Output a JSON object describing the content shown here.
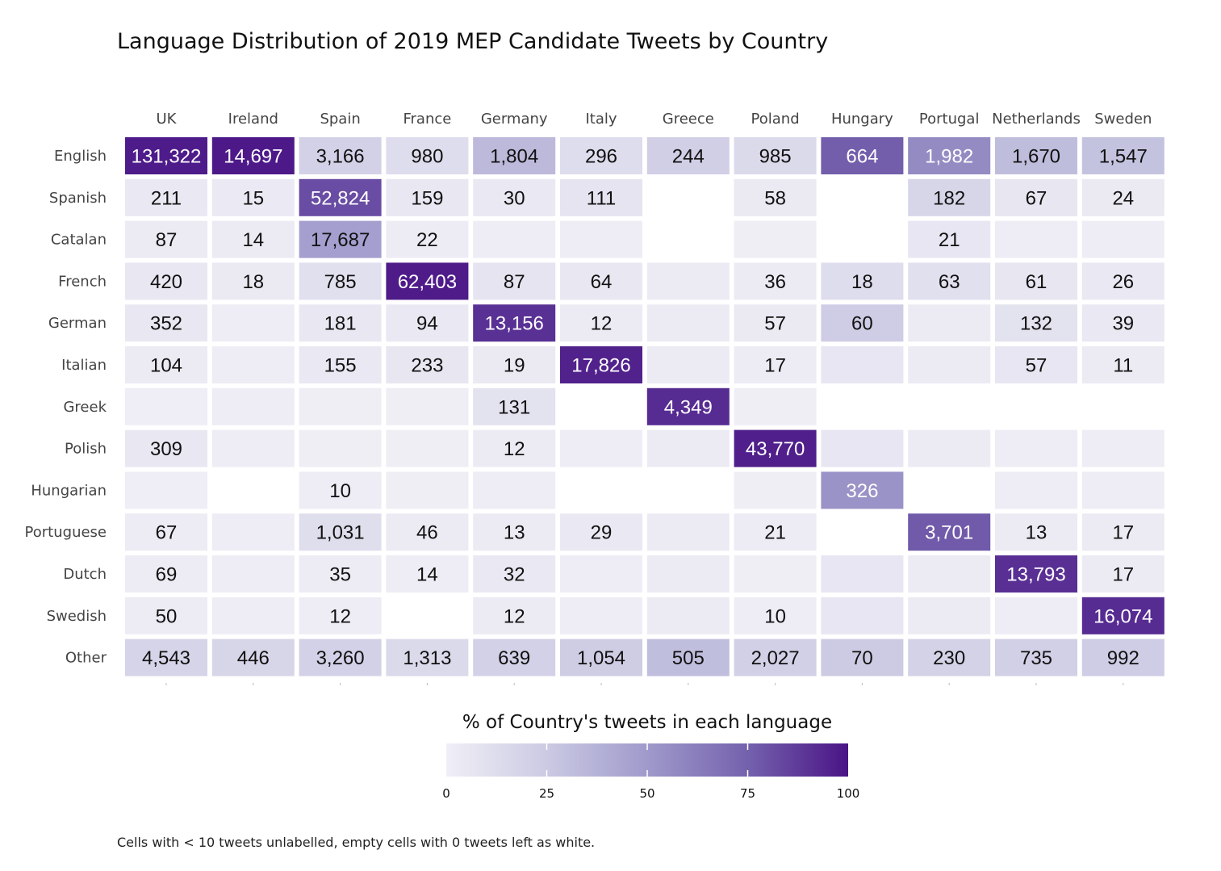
{
  "chart_data": {
    "type": "heatmap",
    "title": "Language Distribution of 2019 MEP Candidate Tweets by Country",
    "caption": "Cells with < 10 tweets unlabelled, empty cells with 0 tweets left as white.",
    "columns": [
      "UK",
      "Ireland",
      "Spain",
      "France",
      "Germany",
      "Italy",
      "Greece",
      "Poland",
      "Hungary",
      "Portugal",
      "Netherlands",
      "Sweden"
    ],
    "rows": [
      "English",
      "Spanish",
      "Catalan",
      "French",
      "German",
      "Italian",
      "Greek",
      "Polish",
      "Hungarian",
      "Portuguese",
      "Dutch",
      "Swedish",
      "Other"
    ],
    "values": [
      [
        131322,
        14697,
        3166,
        980,
        1804,
        296,
        244,
        985,
        664,
        1982,
        1670,
        1547
      ],
      [
        211,
        15,
        52824,
        159,
        30,
        111,
        null,
        58,
        null,
        182,
        67,
        24
      ],
      [
        87,
        14,
        17687,
        22,
        "<10",
        "<10",
        null,
        "<10",
        null,
        21,
        "<10",
        "<10"
      ],
      [
        420,
        18,
        785,
        62403,
        87,
        64,
        "<10",
        36,
        18,
        63,
        61,
        26
      ],
      [
        352,
        "<10",
        181,
        94,
        13156,
        12,
        "<10",
        57,
        60,
        "<10",
        132,
        39
      ],
      [
        104,
        "<10",
        155,
        233,
        19,
        17826,
        "<10",
        17,
        "<10",
        "<10",
        57,
        11
      ],
      [
        "<10",
        "<10",
        "<10",
        "<10",
        131,
        null,
        4349,
        "<10",
        null,
        null,
        null,
        null
      ],
      [
        309,
        "<10",
        "<10",
        "<10",
        12,
        "<10",
        "<10",
        43770,
        "<10",
        "<10",
        "<10",
        "<10"
      ],
      [
        "<10",
        null,
        10,
        "<10",
        "<10",
        null,
        null,
        "<10",
        326,
        null,
        "<10",
        "<10"
      ],
      [
        67,
        "<10",
        1031,
        46,
        13,
        29,
        "<10",
        21,
        null,
        3701,
        13,
        17
      ],
      [
        69,
        "<10",
        35,
        14,
        32,
        "<10",
        "<10",
        "<10",
        "<10",
        "<10",
        13793,
        17
      ],
      [
        50,
        "<10",
        12,
        null,
        12,
        "<10",
        "<10",
        10,
        "<10",
        "<10",
        "<10",
        16074
      ],
      [
        4543,
        446,
        3260,
        1313,
        639,
        1054,
        505,
        2027,
        70,
        230,
        735,
        992
      ]
    ],
    "color_scale": {
      "title": "% of Country's tweets in each language",
      "ticks": [
        0,
        25,
        50,
        75,
        100
      ],
      "range": [
        0,
        100
      ],
      "low_color": "#efedf5",
      "high_color": "#4a1486",
      "empty_color": "#ffffff"
    }
  }
}
